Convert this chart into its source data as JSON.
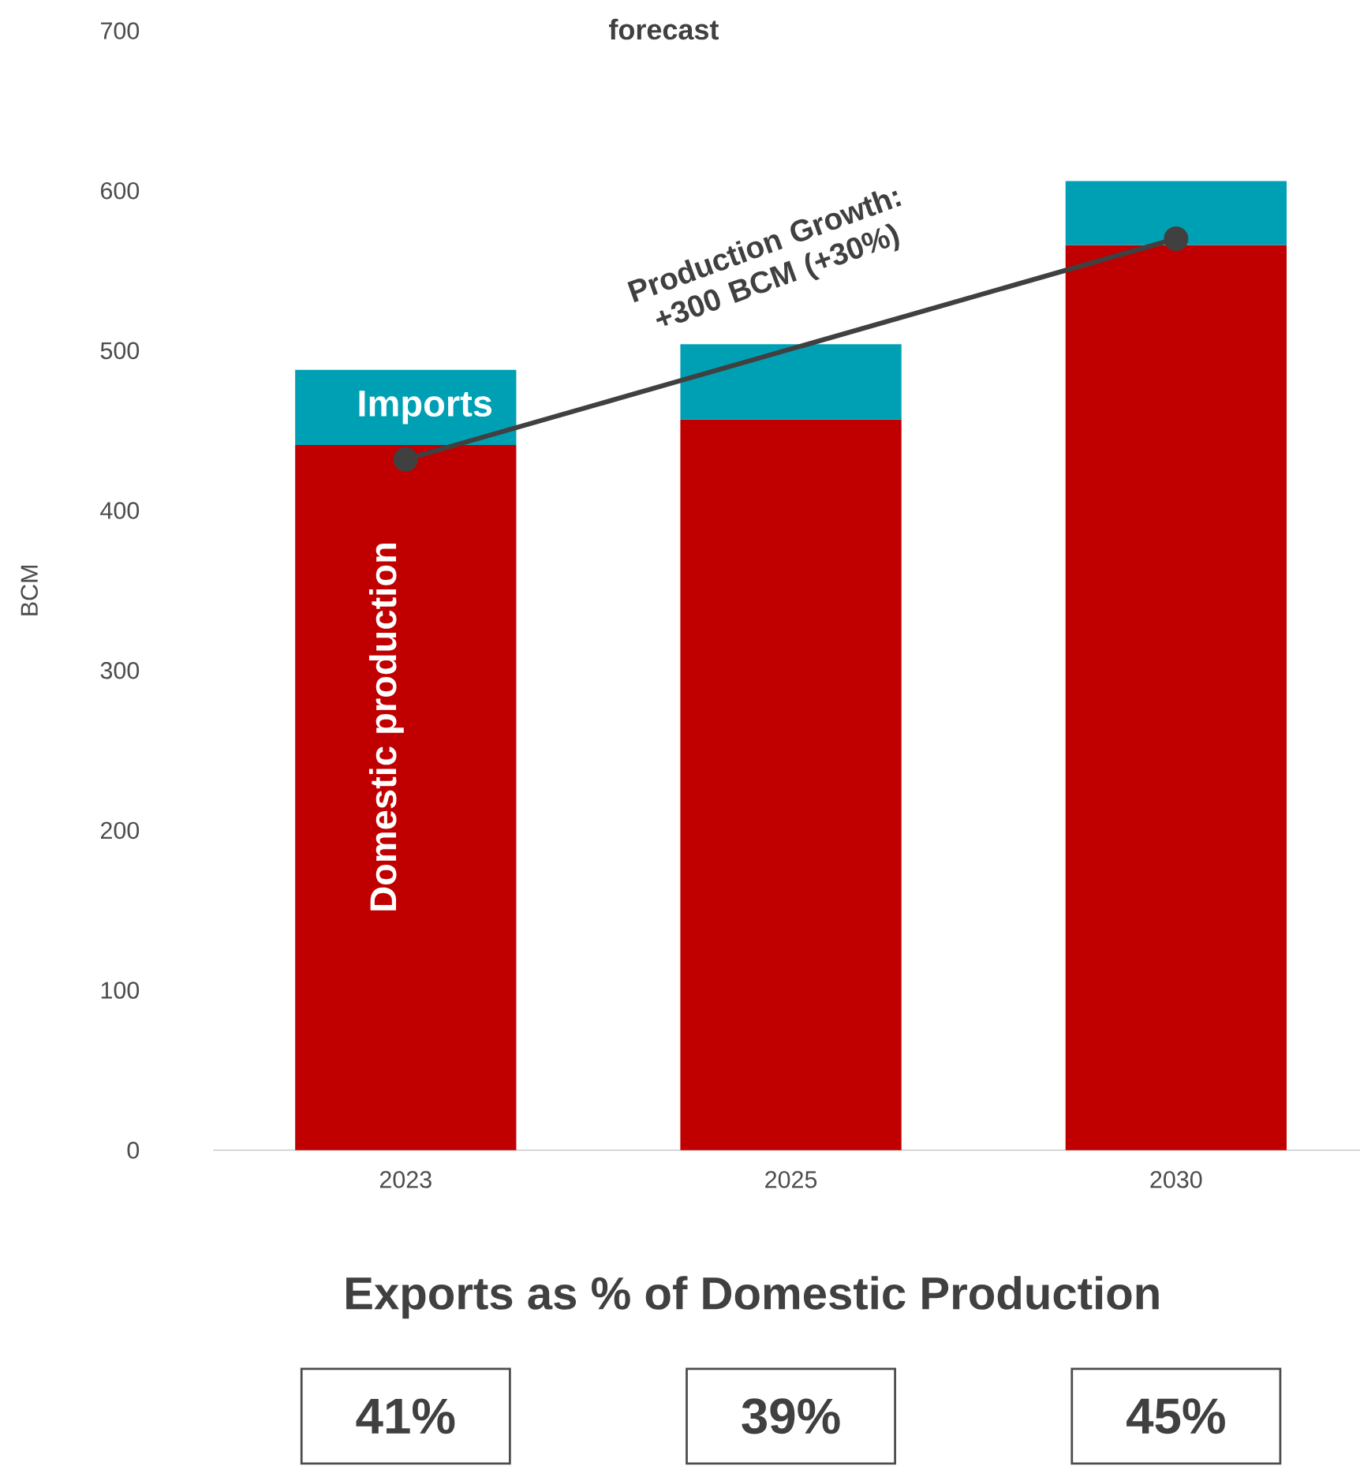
{
  "chart_data": {
    "type": "bar",
    "title": "forecast",
    "ylabel": "BCM",
    "categories": [
      "2023",
      "2025",
      "2030"
    ],
    "stacked": true,
    "series": [
      {
        "name": "Domestic production",
        "color": "#c00000",
        "values": [
          441,
          457,
          566
        ]
      },
      {
        "name": "Imports",
        "color": "#00a0b4",
        "values": [
          47,
          47,
          40
        ]
      },
      {
        "type": "line",
        "color": "#404040",
        "values": [
          432,
          null,
          570
        ],
        "marker": "circle"
      }
    ],
    "ylim": [
      0,
      700
    ],
    "yticks": [
      0,
      100,
      200,
      300,
      400,
      500,
      600,
      700
    ],
    "annotations": [
      "Production Growth: +300 BCM (+30%)",
      "Exports as % of Domestic Production",
      "41%",
      "39%",
      "45%"
    ]
  }
}
